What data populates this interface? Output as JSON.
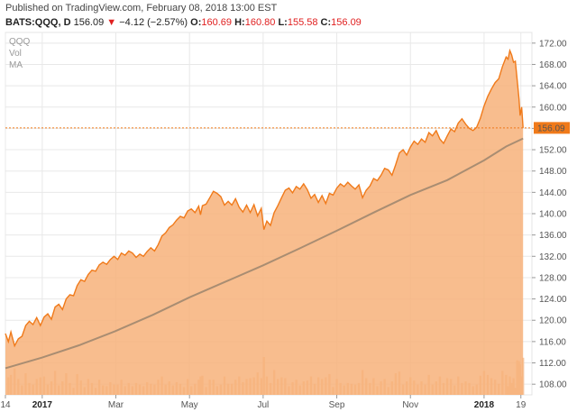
{
  "header": {
    "published": "Published on TradingView.com, February 08, 2018 13:00 EST",
    "symbol": "BATS:QQQ, D",
    "last": "156.09",
    "change_arrow": "▼",
    "change": "−4.12 (−2.57%)",
    "o_label": "O:",
    "o_value": "160.69",
    "h_label": "H:",
    "h_value": "160.80",
    "l_label": "L:",
    "l_value": "155.58",
    "c_label": "C:",
    "c_value": "156.09"
  },
  "legend": {
    "symbol": "QQQ",
    "vol": "Vol",
    "ma": "MA"
  },
  "last_price_label": "156.09",
  "colors": {
    "area_fill": "#f7b27a",
    "price_line": "#f07a1a",
    "ma_line": "#a98d72",
    "volume": "#f5c9a3",
    "last_price": "#f07a1a",
    "grid": "#e8e8e8"
  },
  "chart_data": {
    "type": "area",
    "y_ticks": [
      108,
      112,
      116,
      120,
      124,
      128,
      132,
      136,
      140,
      144,
      148,
      152,
      156,
      160,
      164,
      168,
      172
    ],
    "y_tick_labels": [
      "108.00",
      "112.00",
      "116.00",
      "120.00",
      "124.00",
      "128.00",
      "132.00",
      "136.00",
      "140.00",
      "144.00",
      "148.00",
      "152.00",
      "156.00",
      "160.00",
      "164.00",
      "168.00",
      "172.00"
    ],
    "ylim": [
      106,
      174
    ],
    "x_ticks": [
      {
        "label": "14",
        "month": 0,
        "bold": false
      },
      {
        "label": "2017",
        "month": 1,
        "bold": true
      },
      {
        "label": "Mar",
        "month": 3,
        "bold": false
      },
      {
        "label": "May",
        "month": 5,
        "bold": false
      },
      {
        "label": "Jul",
        "month": 7,
        "bold": false
      },
      {
        "label": "Sep",
        "month": 9,
        "bold": false
      },
      {
        "label": "Nov",
        "month": 11,
        "bold": false
      },
      {
        "label": "2018",
        "month": 13,
        "bold": true
      },
      {
        "label": "19",
        "month": 14,
        "bold": false
      }
    ],
    "xlim": [
      0,
      14.3
    ],
    "price_series": [
      [
        0.0,
        117.5
      ],
      [
        0.08,
        116.0
      ],
      [
        0.15,
        117.8
      ],
      [
        0.25,
        115.2
      ],
      [
        0.35,
        116.5
      ],
      [
        0.45,
        117.0
      ],
      [
        0.55,
        119.0
      ],
      [
        0.65,
        119.8
      ],
      [
        0.75,
        119.2
      ],
      [
        0.85,
        120.5
      ],
      [
        0.95,
        119.0
      ],
      [
        1.05,
        120.6
      ],
      [
        1.15,
        121.2
      ],
      [
        1.25,
        120.2
      ],
      [
        1.35,
        122.5
      ],
      [
        1.45,
        123.0
      ],
      [
        1.55,
        122.0
      ],
      [
        1.65,
        124.0
      ],
      [
        1.75,
        124.8
      ],
      [
        1.85,
        124.6
      ],
      [
        1.95,
        126.5
      ],
      [
        2.05,
        127.6
      ],
      [
        2.15,
        127.3
      ],
      [
        2.25,
        128.6
      ],
      [
        2.35,
        129.4
      ],
      [
        2.45,
        129.2
      ],
      [
        2.55,
        130.4
      ],
      [
        2.65,
        130.9
      ],
      [
        2.75,
        130.5
      ],
      [
        2.85,
        131.4
      ],
      [
        2.95,
        132.0
      ],
      [
        3.05,
        131.4
      ],
      [
        3.15,
        132.6
      ],
      [
        3.25,
        132.2
      ],
      [
        3.35,
        133.0
      ],
      [
        3.45,
        132.6
      ],
      [
        3.55,
        131.8
      ],
      [
        3.65,
        132.4
      ],
      [
        3.75,
        132.0
      ],
      [
        3.85,
        132.9
      ],
      [
        3.95,
        133.6
      ],
      [
        4.05,
        133.0
      ],
      [
        4.15,
        134.2
      ],
      [
        4.25,
        135.8
      ],
      [
        4.35,
        136.4
      ],
      [
        4.45,
        137.4
      ],
      [
        4.55,
        137.9
      ],
      [
        4.65,
        138.8
      ],
      [
        4.75,
        139.5
      ],
      [
        4.85,
        139.2
      ],
      [
        4.95,
        140.5
      ],
      [
        5.05,
        140.9
      ],
      [
        5.15,
        140.2
      ],
      [
        5.25,
        141.4
      ],
      [
        5.3,
        139.8
      ],
      [
        5.35,
        141.5
      ],
      [
        5.45,
        141.8
      ],
      [
        5.55,
        143.0
      ],
      [
        5.65,
        144.2
      ],
      [
        5.75,
        143.8
      ],
      [
        5.85,
        143.2
      ],
      [
        5.95,
        141.6
      ],
      [
        6.05,
        142.3
      ],
      [
        6.15,
        141.6
      ],
      [
        6.25,
        142.8
      ],
      [
        6.35,
        141.2
      ],
      [
        6.45,
        140.3
      ],
      [
        6.55,
        141.6
      ],
      [
        6.65,
        140.2
      ],
      [
        6.75,
        141.7
      ],
      [
        6.85,
        139.6
      ],
      [
        6.95,
        141.0
      ],
      [
        7.02,
        137.0
      ],
      [
        7.1,
        138.6
      ],
      [
        7.2,
        137.8
      ],
      [
        7.3,
        140.2
      ],
      [
        7.4,
        141.5
      ],
      [
        7.5,
        143.0
      ],
      [
        7.6,
        144.4
      ],
      [
        7.7,
        144.8
      ],
      [
        7.8,
        143.9
      ],
      [
        7.9,
        145.1
      ],
      [
        8.0,
        144.6
      ],
      [
        8.1,
        145.6
      ],
      [
        8.2,
        144.5
      ],
      [
        8.3,
        142.9
      ],
      [
        8.4,
        143.6
      ],
      [
        8.5,
        142.1
      ],
      [
        8.6,
        143.4
      ],
      [
        8.7,
        141.9
      ],
      [
        8.8,
        143.8
      ],
      [
        8.9,
        143.5
      ],
      [
        9.0,
        144.8
      ],
      [
        9.1,
        145.6
      ],
      [
        9.2,
        145.1
      ],
      [
        9.3,
        145.9
      ],
      [
        9.4,
        145.2
      ],
      [
        9.5,
        144.6
      ],
      [
        9.6,
        145.4
      ],
      [
        9.7,
        143.0
      ],
      [
        9.8,
        144.4
      ],
      [
        9.9,
        145.2
      ],
      [
        10.0,
        146.6
      ],
      [
        10.1,
        146.2
      ],
      [
        10.2,
        147.2
      ],
      [
        10.3,
        148.5
      ],
      [
        10.4,
        148.2
      ],
      [
        10.5,
        147.2
      ],
      [
        10.6,
        149.2
      ],
      [
        10.7,
        151.4
      ],
      [
        10.8,
        152.0
      ],
      [
        10.9,
        151.0
      ],
      [
        11.0,
        152.5
      ],
      [
        11.1,
        153.6
      ],
      [
        11.2,
        153.0
      ],
      [
        11.3,
        154.0
      ],
      [
        11.4,
        153.4
      ],
      [
        11.5,
        155.2
      ],
      [
        11.6,
        154.6
      ],
      [
        11.7,
        155.6
      ],
      [
        11.8,
        154.0
      ],
      [
        11.9,
        153.2
      ],
      [
        12.0,
        154.6
      ],
      [
        12.1,
        155.9
      ],
      [
        12.2,
        155.4
      ],
      [
        12.3,
        157.0
      ],
      [
        12.4,
        157.8
      ],
      [
        12.5,
        156.8
      ],
      [
        12.6,
        156.0
      ],
      [
        12.7,
        155.6
      ],
      [
        12.8,
        156.2
      ],
      [
        12.9,
        157.9
      ],
      [
        13.0,
        160.2
      ],
      [
        13.1,
        162.0
      ],
      [
        13.2,
        163.4
      ],
      [
        13.3,
        164.6
      ],
      [
        13.4,
        165.3
      ],
      [
        13.5,
        167.6
      ],
      [
        13.6,
        169.4
      ],
      [
        13.65,
        169.0
      ],
      [
        13.7,
        170.6
      ],
      [
        13.75,
        169.8
      ],
      [
        13.8,
        168.4
      ],
      [
        13.85,
        168.6
      ],
      [
        13.9,
        165.0
      ],
      [
        13.95,
        161.5
      ],
      [
        13.98,
        158.4
      ],
      [
        14.02,
        160.0
      ],
      [
        14.06,
        156.09
      ]
    ],
    "ma_series": [
      [
        0.0,
        111.0
      ],
      [
        1.0,
        113.0
      ],
      [
        2.0,
        115.3
      ],
      [
        3.0,
        118.0
      ],
      [
        4.0,
        121.0
      ],
      [
        5.0,
        124.3
      ],
      [
        6.0,
        127.3
      ],
      [
        7.0,
        130.3
      ],
      [
        8.0,
        133.5
      ],
      [
        9.0,
        136.8
      ],
      [
        10.0,
        140.2
      ],
      [
        11.0,
        143.5
      ],
      [
        12.0,
        146.3
      ],
      [
        13.0,
        150.0
      ],
      [
        13.6,
        152.6
      ],
      [
        14.06,
        154.1
      ]
    ],
    "volume_scale_note": ""
  }
}
